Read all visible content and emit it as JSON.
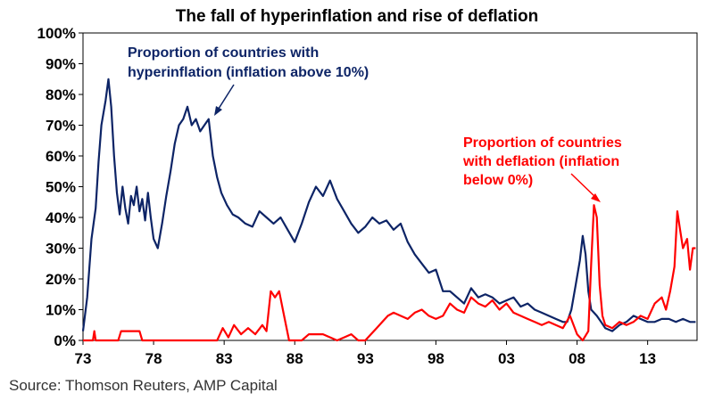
{
  "chart_data": {
    "type": "line",
    "title": "The fall of hyperinflation and rise of deflation",
    "xlabel": "",
    "ylabel": "",
    "xlim": [
      1973,
      2016.5
    ],
    "ylim": [
      0,
      100
    ],
    "x_ticks": [
      {
        "value": 1973,
        "label": "73"
      },
      {
        "value": 1978,
        "label": "78"
      },
      {
        "value": 1983,
        "label": "83"
      },
      {
        "value": 1988,
        "label": "88"
      },
      {
        "value": 1993,
        "label": "93"
      },
      {
        "value": 1998,
        "label": "98"
      },
      {
        "value": 2003,
        "label": "03"
      },
      {
        "value": 2008,
        "label": "08"
      },
      {
        "value": 2013,
        "label": "13"
      }
    ],
    "y_ticks": [
      {
        "value": 0,
        "label": "0%"
      },
      {
        "value": 10,
        "label": "10%"
      },
      {
        "value": 20,
        "label": "20%"
      },
      {
        "value": 30,
        "label": "30%"
      },
      {
        "value": 40,
        "label": "40%"
      },
      {
        "value": 50,
        "label": "50%"
      },
      {
        "value": 60,
        "label": "60%"
      },
      {
        "value": 70,
        "label": "70%"
      },
      {
        "value": 80,
        "label": "80%"
      },
      {
        "value": 90,
        "label": "90%"
      },
      {
        "value": 100,
        "label": "100%"
      }
    ],
    "grid": false,
    "series": [
      {
        "key": "hyperinflation",
        "color": "#0d2466",
        "x": [
          1973.0,
          1973.3,
          1973.6,
          1973.9,
          1974.1,
          1974.3,
          1974.6,
          1974.8,
          1975.0,
          1975.2,
          1975.4,
          1975.6,
          1975.8,
          1976.0,
          1976.2,
          1976.4,
          1976.6,
          1976.8,
          1977.0,
          1977.2,
          1977.4,
          1977.6,
          1977.8,
          1978.0,
          1978.3,
          1978.6,
          1978.9,
          1979.2,
          1979.5,
          1979.8,
          1980.1,
          1980.4,
          1980.7,
          1981.0,
          1981.3,
          1981.6,
          1981.9,
          1982.2,
          1982.5,
          1982.8,
          1983.2,
          1983.6,
          1984.0,
          1984.5,
          1985.0,
          1985.5,
          1986.0,
          1986.5,
          1987.0,
          1987.5,
          1988.0,
          1988.5,
          1989.0,
          1989.5,
          1990.0,
          1990.5,
          1991.0,
          1991.5,
          1992.0,
          1992.5,
          1993.0,
          1993.5,
          1994.0,
          1994.5,
          1995.0,
          1995.5,
          1996.0,
          1996.5,
          1997.0,
          1997.5,
          1998.0,
          1998.5,
          1999.0,
          1999.5,
          2000.0,
          2000.5,
          2001.0,
          2001.5,
          2002.0,
          2002.5,
          2003.0,
          2003.5,
          2004.0,
          2004.5,
          2005.0,
          2005.5,
          2006.0,
          2006.5,
          2007.0,
          2007.3,
          2007.6,
          2007.9,
          2008.2,
          2008.4,
          2008.6,
          2008.8,
          2009.0,
          2009.2,
          2009.4,
          2009.7,
          2010.0,
          2010.5,
          2011.0,
          2011.5,
          2012.0,
          2012.5,
          2013.0,
          2013.5,
          2014.0,
          2014.5,
          2015.0,
          2015.5,
          2016.0,
          2016.4
        ],
        "y": [
          3,
          14,
          33,
          43,
          58,
          70,
          78,
          85,
          76,
          60,
          48,
          41,
          50,
          43,
          38,
          47,
          44,
          50,
          42,
          46,
          39,
          48,
          40,
          33,
          30,
          38,
          47,
          55,
          64,
          70,
          72,
          76,
          70,
          72,
          68,
          70,
          72,
          60,
          53,
          48,
          44,
          41,
          40,
          38,
          37,
          42,
          40,
          38,
          40,
          36,
          32,
          38,
          45,
          50,
          47,
          52,
          46,
          42,
          38,
          35,
          37,
          40,
          38,
          39,
          36,
          38,
          32,
          28,
          25,
          22,
          23,
          16,
          16,
          14,
          12,
          17,
          14,
          15,
          14,
          12,
          13,
          14,
          11,
          12,
          10,
          9,
          8,
          7,
          6,
          6,
          10,
          18,
          26,
          34,
          28,
          16,
          10,
          9,
          8,
          6,
          4,
          3,
          5,
          6,
          8,
          7,
          6,
          6,
          7,
          7,
          6,
          7,
          6,
          6
        ]
      },
      {
        "key": "deflation",
        "color": "#ff0000",
        "x": [
          1973.0,
          1973.7,
          1973.8,
          1973.9,
          1975.5,
          1975.7,
          1977.0,
          1977.2,
          1979.0,
          1982.5,
          1982.9,
          1983.3,
          1983.7,
          1984.2,
          1984.7,
          1985.2,
          1985.7,
          1986.0,
          1986.3,
          1986.6,
          1986.9,
          1987.2,
          1987.6,
          1988.0,
          1988.5,
          1989.0,
          1990.0,
          1991.0,
          1991.5,
          1992.0,
          1992.5,
          1993.0,
          1993.4,
          1993.8,
          1994.2,
          1994.6,
          1995.0,
          1995.5,
          1996.0,
          1996.5,
          1997.0,
          1997.5,
          1998.0,
          1998.5,
          1999.0,
          1999.5,
          2000.0,
          2000.5,
          2001.0,
          2001.5,
          2002.0,
          2002.5,
          2003.0,
          2003.5,
          2004.0,
          2004.5,
          2005.0,
          2005.5,
          2006.0,
          2006.5,
          2007.0,
          2007.5,
          2008.0,
          2008.4,
          2008.8,
          2009.0,
          2009.2,
          2009.4,
          2009.6,
          2009.8,
          2010.0,
          2010.5,
          2011.0,
          2011.5,
          2012.0,
          2012.5,
          2013.0,
          2013.5,
          2014.0,
          2014.3,
          2014.6,
          2014.9,
          2015.1,
          2015.3,
          2015.5,
          2015.8,
          2016.0,
          2016.2,
          2016.4
        ],
        "y": [
          0,
          0,
          3,
          0,
          0,
          3,
          3,
          0,
          0,
          0,
          4,
          1,
          5,
          2,
          4,
          2,
          5,
          3,
          16,
          14,
          16,
          9,
          0,
          0,
          0,
          2,
          2,
          0,
          1,
          2,
          0,
          0,
          2,
          4,
          6,
          8,
          9,
          8,
          7,
          9,
          10,
          8,
          7,
          8,
          12,
          10,
          9,
          14,
          12,
          11,
          13,
          10,
          12,
          9,
          8,
          7,
          6,
          5,
          6,
          5,
          4,
          8,
          2,
          0,
          3,
          25,
          44,
          40,
          18,
          8,
          5,
          4,
          6,
          5,
          6,
          8,
          7,
          12,
          14,
          10,
          16,
          24,
          42,
          36,
          30,
          33,
          23,
          30,
          30
        ]
      }
    ],
    "annotations": [
      {
        "series": "hyperinflation",
        "lines": [
          "Proportion of countries with",
          "hyperinflation (inflation above 10%)"
        ]
      },
      {
        "series": "deflation",
        "lines": [
          "Proportion of countries",
          "with deflation (inflation",
          "below 0%)"
        ]
      }
    ]
  },
  "source": "Source: Thomson Reuters, AMP Capital"
}
